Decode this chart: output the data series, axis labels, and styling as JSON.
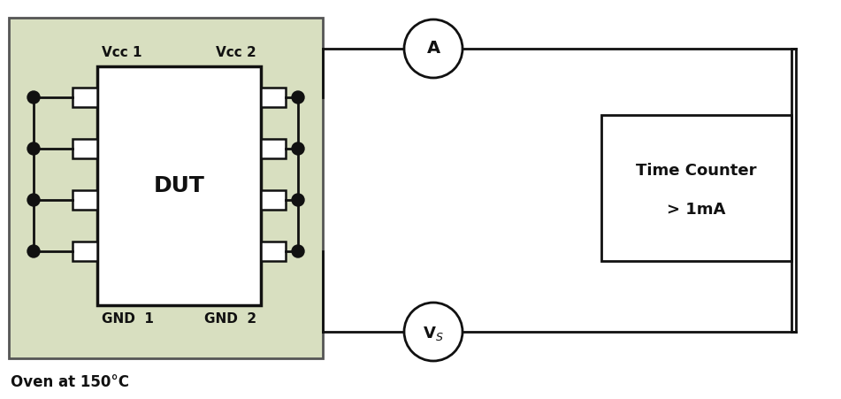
{
  "bg_color": "#ffffff",
  "oven_bg": "#d8dfc0",
  "oven_border": "#555555",
  "dut_label": "DUT",
  "vcc1_label": "Vcc 1",
  "vcc2_label": "Vcc 2",
  "gnd1_label": "GND  1",
  "gnd2_label": "GND  2",
  "ammeter_label": "A",
  "vsource_label": "V_S",
  "tc_label1": "Time Counter",
  "tc_label2": "> 1mA",
  "oven_text": "Oven at 150°C",
  "line_color": "#111111",
  "dot_color": "#111111",
  "fig_w": 9.51,
  "fig_h": 4.51,
  "dpi": 100
}
